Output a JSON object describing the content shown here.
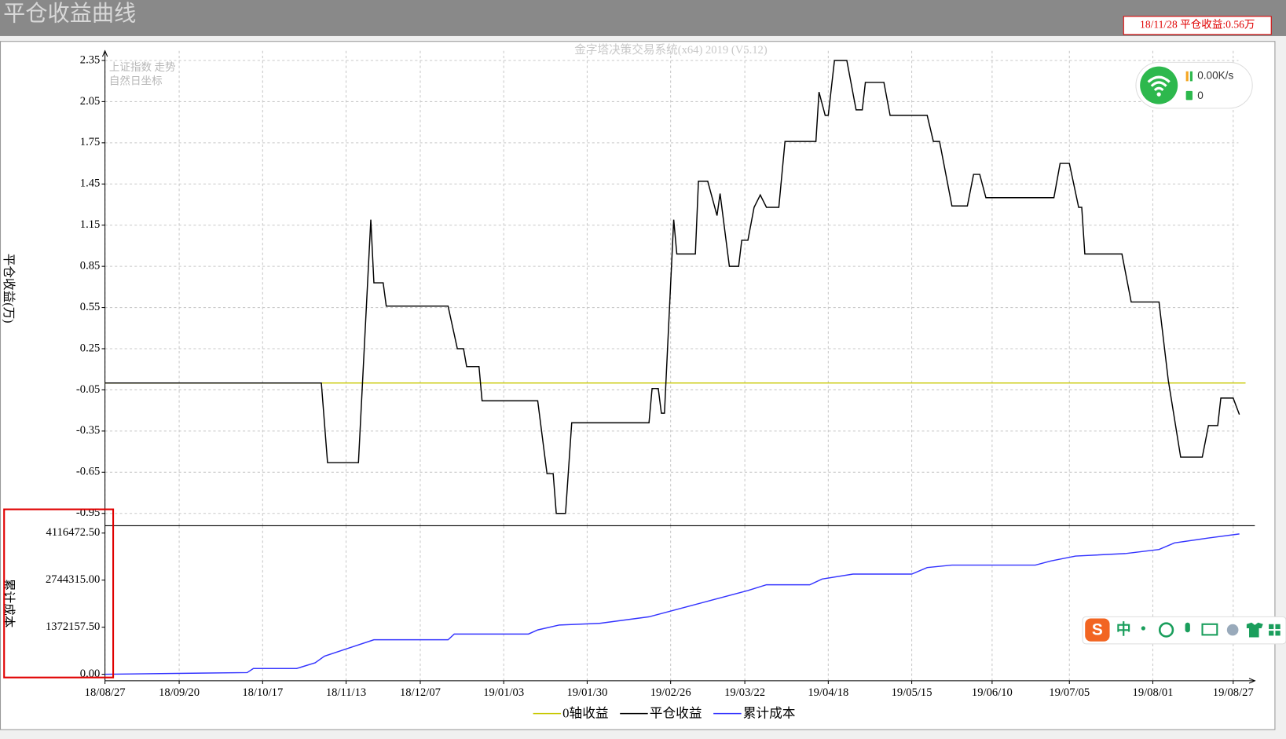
{
  "window": {
    "title": "平仓收益曲线",
    "status": "18/11/28 平仓收益:0.56万",
    "watermark": "金字塔决策交易系统(x64) 2019 (V5.12)",
    "overlay": [
      "上证指数 走势",
      "自然日坐标"
    ]
  },
  "network": {
    "speed": "0.00K/s",
    "count": 0
  },
  "ime_toolbar": {
    "mode": "中"
  },
  "chart_data": [
    {
      "type": "line",
      "ylabel": "平仓收益(万)",
      "xlim": [
        "2018-08-27",
        "2019-09-03"
      ],
      "ylim": [
        -1.04,
        2.42
      ],
      "yticks": [
        2.35,
        2.05,
        1.75,
        1.45,
        1.15,
        0.85,
        0.55,
        0.25,
        -0.05,
        -0.35,
        -0.65,
        -0.95
      ],
      "grid": true,
      "series": [
        {
          "name": "0轴收益",
          "color": "#c8c800",
          "x": [
            "2018-08-27",
            "2019-08-31"
          ],
          "values": [
            0,
            0
          ]
        },
        {
          "name": "平仓收益",
          "color": "#000000",
          "x": [
            "2018-08-27",
            "2018-11-05",
            "2018-11-07",
            "2018-11-17",
            "2018-11-21",
            "2018-11-22",
            "2018-11-25",
            "2018-11-26",
            "2018-12-16",
            "2018-12-19",
            "2018-12-21",
            "2018-12-22",
            "2018-12-26",
            "2018-12-27",
            "2019-01-14",
            "2019-01-17",
            "2019-01-19",
            "2019-01-20",
            "2019-01-23",
            "2019-01-25",
            "2019-02-19",
            "2019-02-20",
            "2019-02-22",
            "2019-02-23",
            "2019-02-24",
            "2019-02-27",
            "2019-02-28",
            "2019-03-06",
            "2019-03-07",
            "2019-03-10",
            "2019-03-13",
            "2019-03-14",
            "2019-03-17",
            "2019-03-20",
            "2019-03-21",
            "2019-03-23",
            "2019-03-25",
            "2019-03-27",
            "2019-03-29",
            "2019-04-02",
            "2019-04-04",
            "2019-04-14",
            "2019-04-15",
            "2019-04-17",
            "2019-04-18",
            "2019-04-20",
            "2019-04-24",
            "2019-04-27",
            "2019-04-29",
            "2019-04-30",
            "2019-05-06",
            "2019-05-08",
            "2019-05-20",
            "2019-05-22",
            "2019-05-24",
            "2019-05-28",
            "2019-06-02",
            "2019-06-04",
            "2019-06-06",
            "2019-06-08",
            "2019-06-30",
            "2019-07-02",
            "2019-07-05",
            "2019-07-08",
            "2019-07-09",
            "2019-07-10",
            "2019-07-22",
            "2019-07-25",
            "2019-08-03",
            "2019-08-06",
            "2019-08-10",
            "2019-08-17",
            "2019-08-19",
            "2019-08-22",
            "2019-08-23",
            "2019-08-27",
            "2019-08-29"
          ],
          "values": [
            0,
            0,
            -0.58,
            -0.58,
            1.19,
            0.73,
            0.73,
            0.56,
            0.56,
            0.25,
            0.25,
            0.12,
            0.12,
            -0.13,
            -0.13,
            -0.66,
            -0.66,
            -0.95,
            -0.95,
            -0.29,
            -0.29,
            -0.04,
            -0.04,
            -0.22,
            -0.22,
            1.19,
            0.94,
            0.94,
            1.47,
            1.47,
            1.22,
            1.38,
            0.85,
            0.85,
            1.04,
            1.04,
            1.28,
            1.37,
            1.28,
            1.28,
            1.76,
            1.76,
            2.12,
            1.95,
            1.95,
            2.35,
            2.35,
            1.99,
            1.99,
            2.19,
            2.19,
            1.95,
            1.95,
            1.76,
            1.76,
            1.29,
            1.29,
            1.52,
            1.52,
            1.35,
            1.35,
            1.6,
            1.6,
            1.28,
            1.28,
            0.94,
            0.94,
            0.59,
            0.59,
            0.02,
            -0.54,
            -0.54,
            -0.31,
            -0.31,
            -0.11,
            -0.11,
            -0.23
          ]
        }
      ]
    },
    {
      "type": "line",
      "ylabel": "累计成本",
      "xlim": [
        "2018-08-27",
        "2019-09-03"
      ],
      "ylim": [
        -190000,
        4330000
      ],
      "yticks": [
        {
          "value": 4116472.5,
          "label": "4116472.50"
        },
        {
          "value": 2744315,
          "label": "2744315.00"
        },
        {
          "value": 1372157.5,
          "label": "1372157.50"
        },
        {
          "value": 0,
          "label": "0.00"
        }
      ],
      "xticks": [
        {
          "value": "2018-08-27",
          "label": "18/08/27"
        },
        {
          "value": "2018-09-20",
          "label": "18/09/20"
        },
        {
          "value": "2018-10-17",
          "label": "18/10/17"
        },
        {
          "value": "2018-11-13",
          "label": "18/11/13"
        },
        {
          "value": "2018-12-07",
          "label": "18/12/07"
        },
        {
          "value": "2019-01-03",
          "label": "19/01/03"
        },
        {
          "value": "2019-01-30",
          "label": "19/01/30"
        },
        {
          "value": "2019-02-26",
          "label": "19/02/26"
        },
        {
          "value": "2019-03-22",
          "label": "19/03/22"
        },
        {
          "value": "2019-04-18",
          "label": "19/04/18"
        },
        {
          "value": "2019-05-15",
          "label": "19/05/15"
        },
        {
          "value": "2019-06-10",
          "label": "19/06/10"
        },
        {
          "value": "2019-07-05",
          "label": "19/07/05"
        },
        {
          "value": "2019-08-01",
          "label": "19/08/01"
        },
        {
          "value": "2019-08-27",
          "label": "19/08/27"
        }
      ],
      "grid": true,
      "series": [
        {
          "name": "累计成本",
          "color": "#3434ff",
          "x": [
            "2018-08-27",
            "2018-10-12",
            "2018-10-14",
            "2018-10-28",
            "2018-11-03",
            "2018-11-06",
            "2018-11-14",
            "2018-11-22",
            "2018-12-16",
            "2018-12-18",
            "2019-01-11",
            "2019-01-14",
            "2019-01-21",
            "2019-02-03",
            "2019-02-19",
            "2019-02-27",
            "2019-03-07",
            "2019-03-15",
            "2019-03-23",
            "2019-03-29",
            "2019-04-12",
            "2019-04-16",
            "2019-04-26",
            "2019-05-15",
            "2019-05-20",
            "2019-05-28",
            "2019-06-24",
            "2019-06-29",
            "2019-07-07",
            "2019-07-23",
            "2019-08-03",
            "2019-08-08",
            "2019-08-19",
            "2019-08-29"
          ],
          "values": [
            0,
            47900,
            167500,
            167500,
            335000,
            526500,
            766000,
            1005000,
            1005000,
            1172700,
            1172700,
            1292000,
            1436000,
            1484000,
            1675000,
            1867000,
            2058000,
            2250000,
            2441000,
            2609000,
            2609000,
            2776000,
            2920000,
            2920000,
            3111000,
            3183000,
            3183000,
            3303000,
            3446000,
            3518000,
            3637000,
            3829000,
            3973000,
            4092000
          ]
        }
      ]
    }
  ]
}
